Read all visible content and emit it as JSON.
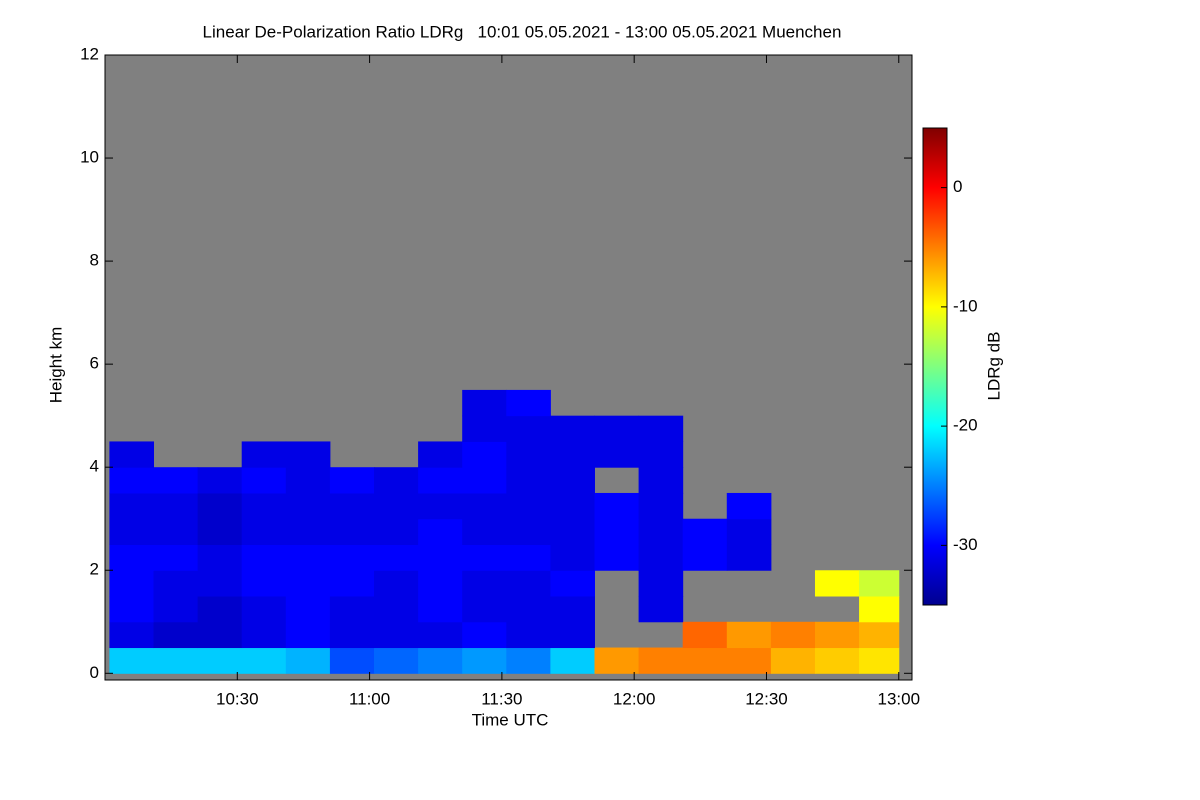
{
  "chart_data": {
    "type": "heatmap",
    "title": "Linear De-Polarization Ratio LDRg   10:01 05.05.2021 - 13:00 05.05.2021 Muenchen",
    "x_label": "Time UTC",
    "y_label": "Height km",
    "x_bins": [
      1,
      11,
      21,
      31,
      41,
      51,
      61,
      71,
      81,
      91,
      101,
      111,
      121,
      131,
      141,
      151,
      161,
      171,
      180
    ],
    "y_bins": [
      0,
      0.5,
      1,
      1.5,
      2,
      2.5,
      3,
      3.5,
      4,
      4.5,
      5,
      5.5
    ],
    "z": [
      [
        -22,
        -22,
        -22,
        -22,
        -23,
        -27,
        -26,
        -25,
        -24,
        -25,
        -22,
        -6,
        -5,
        -5,
        -5,
        -7,
        -8,
        -9
      ],
      [
        -31,
        -32,
        -32,
        -31,
        -30,
        -31,
        -31,
        -31,
        -30,
        -31,
        -31,
        null,
        null,
        -4,
        -6,
        -5,
        -6,
        -7
      ],
      [
        -30,
        -31,
        -32,
        -31,
        -30,
        -31,
        -31,
        -30,
        -31,
        -31,
        -31,
        null,
        -31,
        null,
        null,
        null,
        null,
        -10
      ],
      [
        -30,
        -31,
        -31,
        -30,
        -30,
        -30,
        -31,
        -30,
        -31,
        -31,
        -30,
        null,
        -31,
        null,
        null,
        null,
        -10,
        -12
      ],
      [
        -30,
        -30,
        -31,
        -30,
        -30,
        -30,
        -30,
        -30,
        -30,
        -30,
        -31,
        -30,
        -31,
        -30,
        -31,
        null,
        null,
        null
      ],
      [
        -31,
        -31,
        -32,
        -31,
        -31,
        -31,
        -31,
        -30,
        -31,
        -31,
        -31,
        -30,
        -31,
        -30,
        -31,
        null,
        null,
        null
      ],
      [
        -31,
        -31,
        -32,
        -31,
        -31,
        -31,
        -31,
        -31,
        -31,
        -31,
        -31,
        -30,
        -31,
        null,
        -30,
        null,
        null,
        null
      ],
      [
        -30,
        -30,
        -31,
        -30,
        -31,
        -30,
        -31,
        -30,
        -30,
        -31,
        -31,
        null,
        -31,
        null,
        null,
        null,
        null,
        null
      ],
      [
        -31,
        null,
        null,
        -31,
        -31,
        null,
        null,
        -31,
        -30,
        -31,
        -31,
        -31,
        -31,
        null,
        null,
        null,
        null,
        null
      ],
      [
        null,
        null,
        null,
        null,
        null,
        null,
        null,
        null,
        -31,
        -31,
        -31,
        -31,
        -31,
        null,
        null,
        null,
        null,
        null
      ],
      [
        null,
        null,
        null,
        null,
        null,
        null,
        null,
        null,
        -31,
        -30,
        null,
        null,
        null,
        null,
        null,
        null,
        null,
        null
      ]
    ],
    "xlim": [
      0,
      183
    ],
    "xticks": [
      {
        "value": 30,
        "label": "10:30"
      },
      {
        "value": 60,
        "label": "11:00"
      },
      {
        "value": 90,
        "label": "11:30"
      },
      {
        "value": 120,
        "label": "12:00"
      },
      {
        "value": 150,
        "label": "12:30"
      },
      {
        "value": 180,
        "label": "13:00"
      }
    ],
    "ylim": [
      -0.13,
      12
    ],
    "yticks": [
      0,
      2,
      4,
      6,
      8,
      10,
      12
    ],
    "background": "#808080",
    "colormap": "jet",
    "colorbar": {
      "label": "LDRg dB",
      "range": [
        -35,
        5
      ],
      "ticks": [
        0,
        -10,
        -20,
        -30
      ]
    }
  }
}
